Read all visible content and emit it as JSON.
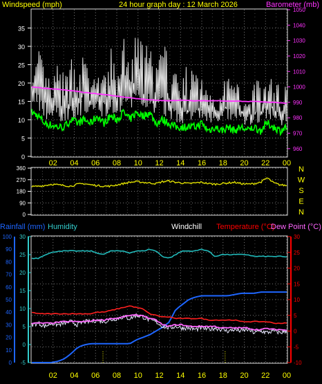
{
  "colors": {
    "background": "#000000",
    "panel_border": "#e0e0e0",
    "grid": "#7a7a7a",
    "white": "#ffffff",
    "yellow": "#ffff00",
    "magenta": "#ff33ff",
    "green": "#00ff00",
    "dir_yellow": "#dddd00",
    "blue": "#1e66ff",
    "cyan": "#33cccc",
    "red": "#ff0000",
    "windchill": "#e8e8ff",
    "temp_line": "#ff2020",
    "dewpoint": "#ff66ff",
    "rain": "#1e66ff",
    "humidity": "#22bbbb"
  },
  "chart_data": [
    {
      "type": "line",
      "title": "24 hour graph day : 12 March 2026",
      "ylabel_left": "Windspeed (mph)",
      "ylabel_right": "Barometer (mb)",
      "ylim_left": [
        0,
        40
      ],
      "left_ticks": [
        "0",
        "5",
        "10",
        "15",
        "20",
        "25",
        "30",
        "35"
      ],
      "ylim_right": [
        955,
        1050
      ],
      "right_ticks": [
        "960",
        "970",
        "980",
        "990",
        "1000",
        "1010",
        "1020",
        "1030",
        "1040",
        "1050"
      ],
      "x_ticks": [
        "02",
        "04",
        "06",
        "08",
        "10",
        "12",
        "14",
        "16",
        "18",
        "20",
        "22",
        "00"
      ],
      "xlim": [
        0,
        24
      ],
      "grid": true,
      "series": [
        {
          "kind": "gust",
          "values": [
            18,
            30,
            25,
            20,
            26,
            22,
            28,
            30,
            28,
            22,
            24,
            22,
            30,
            26,
            33,
            28,
            35,
            32,
            30,
            26,
            32,
            28,
            25,
            22,
            26,
            24,
            22,
            20,
            22,
            18,
            24,
            20,
            22,
            18,
            22,
            20,
            24,
            22,
            20,
            23
          ]
        },
        {
          "kind": "average",
          "values": [
            19,
            18,
            14,
            13,
            14,
            12,
            14,
            15,
            16,
            13,
            15,
            14,
            17,
            14,
            18,
            15,
            18,
            17,
            17,
            14,
            16,
            14,
            13,
            12,
            12,
            12,
            13,
            11,
            12,
            11,
            13,
            12,
            12,
            10,
            12,
            11,
            13,
            12,
            11,
            12
          ]
        },
        {
          "kind": "lull",
          "values": [
            12,
            11,
            9,
            8.5,
            8,
            8,
            10,
            9,
            10,
            9,
            11,
            9,
            11,
            10,
            12,
            10,
            12,
            11,
            12,
            9,
            10,
            9,
            8,
            8,
            8,
            8,
            9,
            7,
            8,
            7,
            8,
            7,
            8,
            7,
            8,
            7,
            9,
            8,
            7,
            8
          ]
        },
        {
          "kind": "barometer",
          "values": [
            1000,
            999.5,
            999,
            998.7,
            998.4,
            998,
            997.6,
            997,
            996.5,
            996,
            995.5,
            995,
            994.5,
            994,
            993.5,
            993,
            992.5,
            992,
            991.6,
            991.5,
            991.2,
            991,
            991.2,
            991.4,
            991.3,
            991,
            991.1,
            991,
            991,
            991,
            990.8,
            990.9,
            990.7,
            990.5,
            990.6,
            990.4,
            990.2,
            990,
            989.6,
            989.4
          ]
        }
      ]
    },
    {
      "type": "line",
      "ylabel": "",
      "ylim": [
        0,
        360
      ],
      "y_ticks": [
        "0",
        "90",
        "180",
        "270",
        "360"
      ],
      "compass_labels": [
        "N",
        "W",
        "S",
        "E",
        "N"
      ],
      "xlim": [
        0,
        24
      ],
      "grid": true,
      "series": [
        {
          "kind": "wind-direction",
          "values": [
            215,
            220,
            225,
            235,
            230,
            225,
            220,
            235,
            240,
            230,
            225,
            220,
            220,
            230,
            240,
            250,
            255,
            250,
            245,
            240,
            255,
            260,
            250,
            245,
            240,
            245,
            250,
            240,
            235,
            240,
            245,
            250,
            240,
            235,
            240,
            250,
            285,
            245,
            230,
            225
          ]
        }
      ]
    },
    {
      "type": "line",
      "ylabel_left_rain": "Rainfall (mm)",
      "ylabel_left_humidity": "Humidity",
      "label_windchill": "Windchill",
      "ylabel_right": "Temperature (°C)",
      "label_dewpoint": "Dew Point (°C)",
      "rain_ticks": [
        "0",
        "10",
        "20",
        "30",
        "40",
        "50",
        "60",
        "70",
        "80",
        "90",
        "100"
      ],
      "humidity_ticks": [
        "-5",
        "0",
        "5",
        "10",
        "15",
        "20",
        "25",
        "30"
      ],
      "temp_ticks": [
        "-10",
        "-5",
        "0",
        "5",
        "10",
        "15",
        "20",
        "25",
        "30"
      ],
      "ylim_temp": [
        -10,
        30
      ],
      "ylim_humidity": [
        -5,
        30
      ],
      "ylim_rain": [
        0,
        100
      ],
      "xlim": [
        0,
        24
      ],
      "x_ticks": [
        "02",
        "04",
        "06",
        "08",
        "10",
        "12",
        "14",
        "16",
        "18",
        "20",
        "22",
        "00"
      ],
      "grid": true,
      "series": [
        {
          "kind": "humidity",
          "values": [
            24,
            24,
            25,
            25.5,
            26,
            26,
            26,
            26,
            26,
            26,
            25.5,
            25,
            26,
            26,
            26,
            25.5,
            26,
            26,
            26.5,
            26,
            24.5,
            24,
            25,
            26,
            26,
            26,
            26.5,
            26,
            24.5,
            25,
            25,
            25,
            25,
            25,
            24.5,
            24.5,
            24.5,
            24.5,
            24.5,
            24.3
          ]
        },
        {
          "kind": "temperature",
          "values": [
            6,
            5.5,
            5.5,
            5.5,
            5.5,
            5.5,
            5.5,
            5.5,
            5.5,
            5.5,
            6,
            6,
            6.5,
            7,
            7.5,
            8,
            7.5,
            7,
            5.5,
            5,
            4.5,
            4.5,
            4,
            4,
            4,
            4,
            4,
            3.5,
            3.5,
            3.5,
            3.5,
            3.5,
            3,
            3,
            3,
            3,
            3,
            2.5,
            2.5,
            2.5
          ]
        },
        {
          "kind": "dewpoint",
          "values": [
            2.5,
            2.5,
            2.5,
            2.5,
            2.8,
            3,
            3,
            3,
            3,
            3.2,
            3.5,
            3.5,
            4,
            4,
            4.5,
            5,
            5,
            5,
            4,
            3.5,
            2,
            1.5,
            2,
            2,
            1.5,
            1.5,
            1.5,
            1.5,
            1.5,
            1,
            1,
            1,
            1,
            1,
            0.5,
            0.5,
            0.8,
            0.5,
            0.5,
            0.2
          ]
        },
        {
          "kind": "windchill",
          "values": [
            2,
            2.5,
            1.5,
            2.5,
            2,
            2.5,
            3,
            2,
            3,
            3,
            3.5,
            3,
            3.5,
            4,
            4.5,
            4,
            5,
            4.5,
            3.5,
            3,
            1.5,
            1,
            1.5,
            1,
            1,
            0.5,
            1,
            0.5,
            1,
            0.5,
            0,
            0.5,
            0,
            0.5,
            -0.5,
            0,
            -0.5,
            0,
            -0.5,
            0
          ]
        },
        {
          "kind": "rainfall",
          "values": [
            0,
            0,
            0,
            0,
            1,
            3,
            7,
            12,
            14,
            15,
            15,
            15,
            15,
            15,
            15,
            15,
            18,
            20,
            22,
            25,
            28,
            32,
            42,
            46,
            50,
            52,
            53,
            53,
            53,
            53,
            53,
            54,
            55,
            55,
            55,
            56,
            56,
            56,
            56,
            56
          ]
        }
      ]
    }
  ]
}
